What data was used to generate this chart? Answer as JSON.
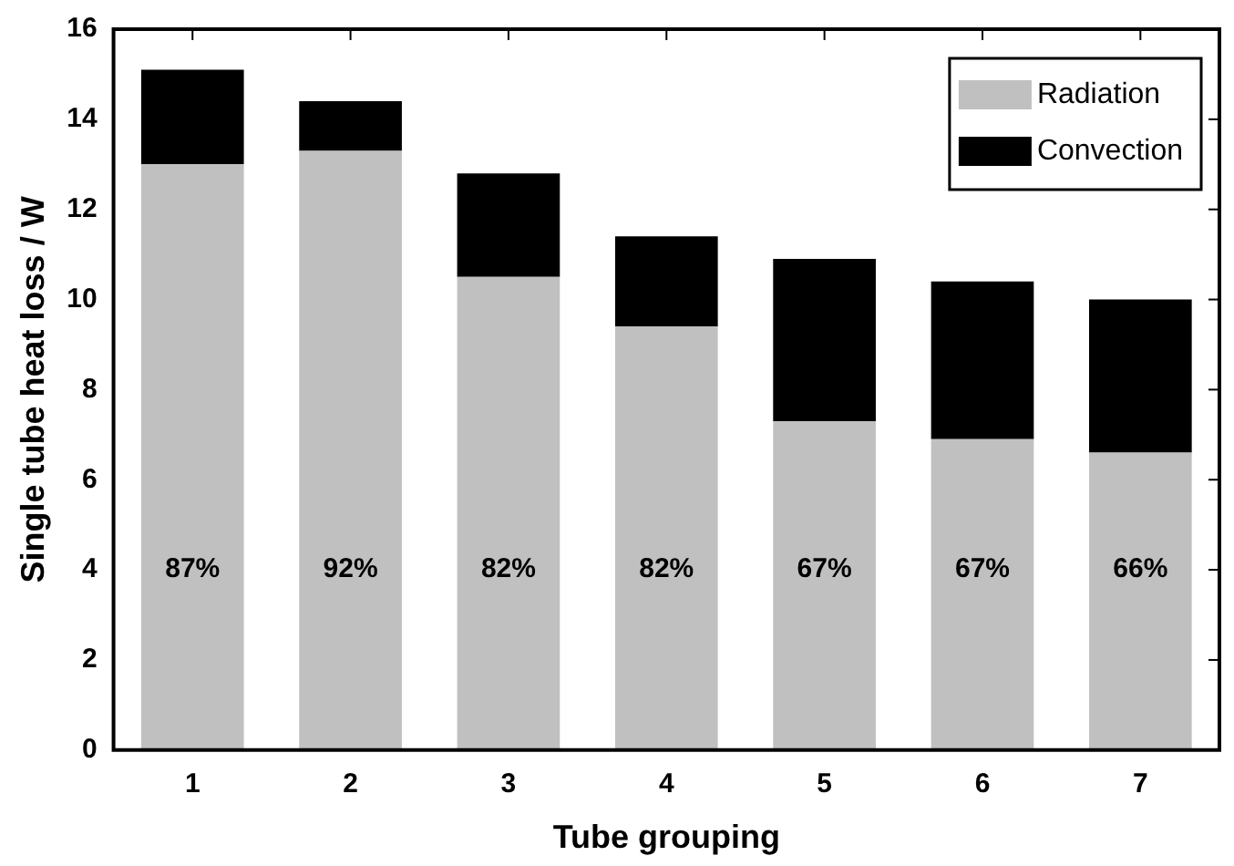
{
  "chart_data": {
    "type": "bar",
    "stacked": true,
    "xlabel": "Tube grouping",
    "ylabel": "Single tube heat loss / W",
    "categories": [
      "1",
      "2",
      "3",
      "4",
      "5",
      "6",
      "7"
    ],
    "series": [
      {
        "name": "Radiation",
        "color": "#c0c0c0",
        "values": [
          13.0,
          13.3,
          10.5,
          9.4,
          7.3,
          6.9,
          6.6
        ]
      },
      {
        "name": "Convection",
        "color": "#000000",
        "values": [
          2.1,
          1.1,
          2.3,
          2.0,
          3.6,
          3.5,
          3.4
        ]
      }
    ],
    "ylim": [
      0,
      16
    ],
    "yticks": [
      0,
      2,
      4,
      6,
      8,
      10,
      12,
      14,
      16
    ],
    "grid": false,
    "legend": "top right",
    "annotations": [
      "87%",
      "92%",
      "82%",
      "82%",
      "67%",
      "67%",
      "66%"
    ]
  }
}
